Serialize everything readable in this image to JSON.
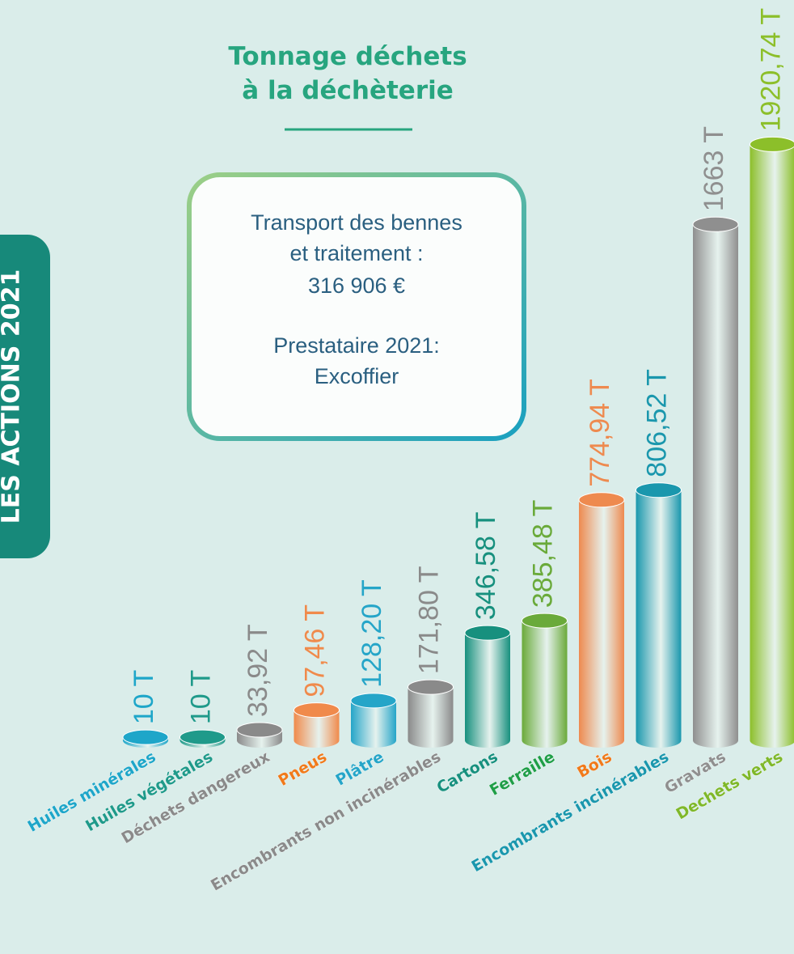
{
  "tab": "LES ACTIONS 2021",
  "title": [
    "Tonnage déchets",
    "à la déchèterie"
  ],
  "note": [
    "Transport des bennes",
    "et traitement  :",
    "316 906 €",
    "Prestataire 2021:",
    "Excoffier"
  ],
  "chart_data": {
    "type": "bar",
    "categories": [
      "Huiles minérales",
      "Huiles végétales",
      "Déchets dangereux",
      "Pneus",
      "Plâtre",
      "Encombrants non incinérables",
      "Cartons",
      "Ferraille",
      "Bois",
      "Encombrants incinérables",
      "Gravats",
      "Dechets verts"
    ],
    "values": [
      10,
      10,
      33.92,
      97.46,
      128.2,
      171.8,
      346.58,
      385.48,
      774.94,
      806.52,
      1663,
      1920.74
    ],
    "value_labels": [
      "10 T",
      "10 T",
      "33,92 T",
      "97,46 T",
      "128,20 T",
      "171,80 T",
      "346,58 T",
      "385,48 T",
      "774,94 T",
      "806,52 T",
      "1663 T",
      "1920,74 T"
    ],
    "colors": [
      "#1ea6c9",
      "#1f9a8a",
      "#8a8a8a",
      "#f08a4b",
      "#25a5c8",
      "#8a8a8a",
      "#17907e",
      "#6aaa3a",
      "#ee8a4f",
      "#1a97ad",
      "#8f8f8f",
      "#8cbf2a"
    ],
    "label_colors": [
      "#1ea6c9",
      "#1f9a8a",
      "#8a8a8a",
      "#f07a1b",
      "#25a5c8",
      "#8a8a8a",
      "#17907e",
      "#1f9e47",
      "#f07a1b",
      "#1a97ad",
      "#8f8f8f",
      "#7fb82a"
    ]
  }
}
